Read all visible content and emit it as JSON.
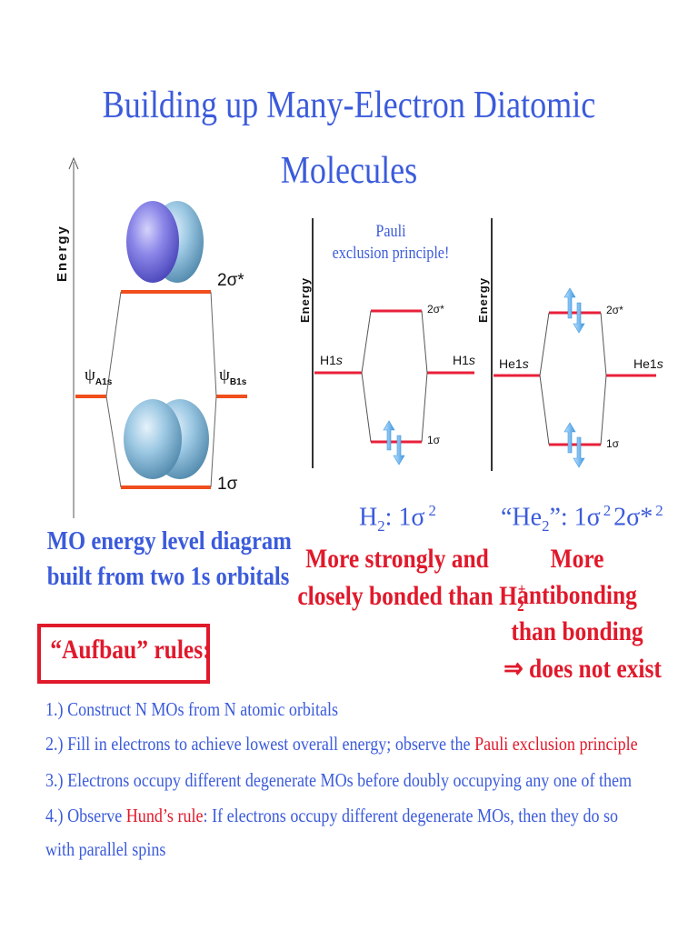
{
  "title": {
    "line1": "Building up Many-Electron Diatomic",
    "line2": "Molecules"
  },
  "left_diagram": {
    "axis_label": "Energy",
    "level_antibonding": "2σ*",
    "level_bonding": "1σ",
    "psi_a": "ψ",
    "psi_a_sub": "A1s",
    "psi_b": "ψ",
    "psi_b_sub": "B1s",
    "caption_line1": "MO energy level diagram",
    "caption_line2": "built from two 1s orbitals"
  },
  "h2_diagram": {
    "axis_label": "Energy",
    "note_line1": "Pauli",
    "note_line2": "exclusion principle!",
    "left_ao": "H1",
    "left_ao_suffix": "s",
    "right_ao": "H1",
    "right_ao_suffix": "s",
    "upper": "2σ*",
    "lower": "1σ",
    "config_mol": "H",
    "config_sub": "2",
    "config_text": ": 1σ",
    "config_sup": "2",
    "desc_line1": "More strongly and",
    "desc_line2": "closely bonded than H",
    "desc_sub": "2",
    "desc_sup": "+"
  },
  "he2_diagram": {
    "axis_label": "Energy",
    "left_ao": "He1",
    "left_ao_suffix": "s",
    "right_ao": "He1",
    "right_ao_suffix": "s",
    "upper": "2σ*",
    "lower": "1σ",
    "config_open": "“He",
    "config_sub": "2",
    "config_close": "”: 1σ",
    "config_sup1": "2",
    "config_mid": "2σ*",
    "config_sup2": "2",
    "desc_line1": "More",
    "desc_line2": "antibonding",
    "desc_line3": "than bonding",
    "desc_line4": "⇒ does not exist"
  },
  "aufbau": {
    "box_label": "“Aufbau” rules:",
    "rule1": "1.) Construct N MOs from N atomic orbitals",
    "rule2_pre": "2.) Fill in electrons to achieve lowest overall energy; observe the ",
    "rule2_red": "Pauli exclusion principle",
    "rule3": "3.) Electrons occupy different degenerate MOs before doubly occupying any one of them",
    "rule4_pre": "4.) Observe ",
    "rule4_red": "Hund’s rule",
    "rule4_post": ": If electrons occupy different degenerate MOs, then they do so",
    "rule4_line2": "with parallel spins"
  },
  "colors": {
    "title_blue": "#3b5bdb",
    "accent_red": "#e0192b",
    "level_orange": "#f04e1c",
    "level_red": "#e8203a",
    "arrow_blue": "#64b4ee"
  }
}
